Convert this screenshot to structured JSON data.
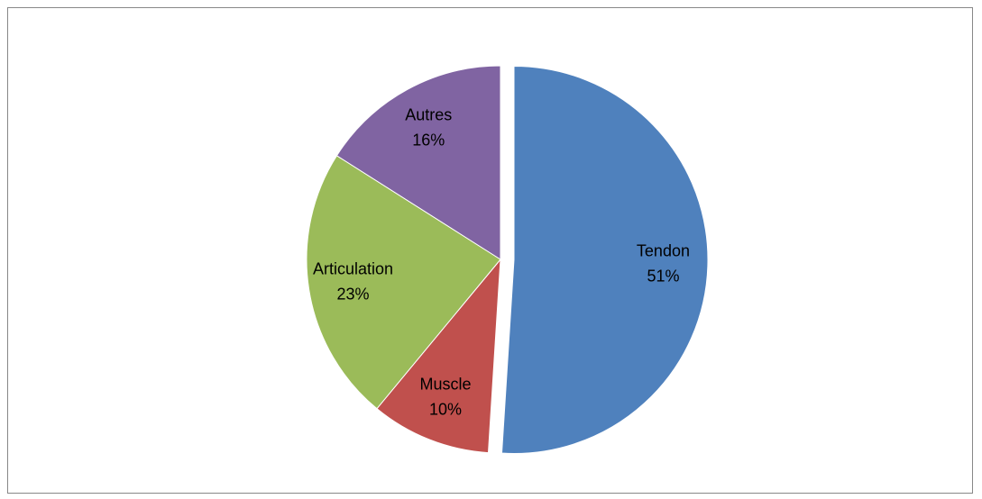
{
  "chart_data": {
    "type": "pie",
    "categories": [
      "Tendon",
      "Muscle",
      "Articulation",
      "Autres"
    ],
    "values": [
      51,
      10,
      23,
      16
    ],
    "value_labels": [
      "51%",
      "10%",
      "23%",
      "16%"
    ],
    "colors": [
      "#4f81bd",
      "#c0504d",
      "#9bbb59",
      "#8064a2"
    ],
    "exploded": "Tendon"
  }
}
